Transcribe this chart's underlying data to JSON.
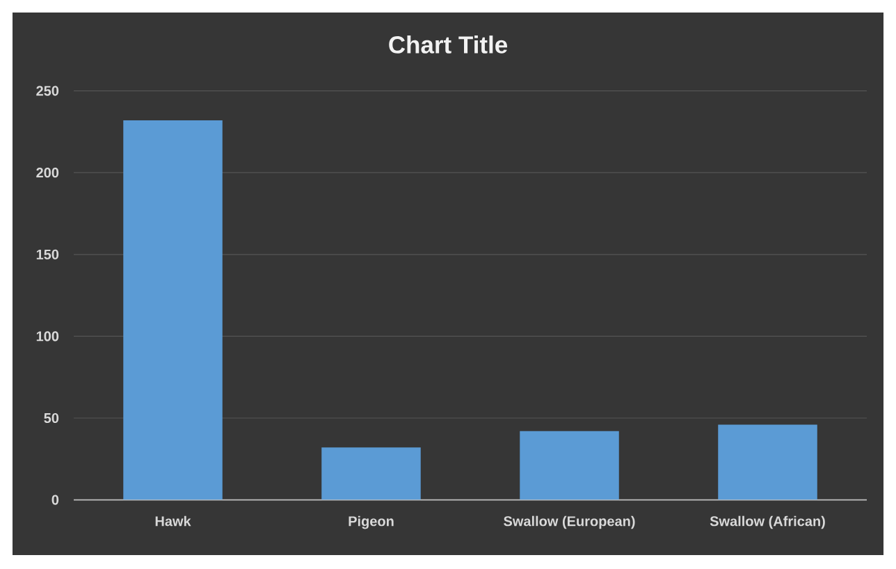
{
  "chart_data": {
    "type": "bar",
    "title": "Chart Title",
    "categories": [
      "Hawk",
      "Pigeon",
      "Swallow (European)",
      "Swallow (African)"
    ],
    "values": [
      232,
      32,
      42,
      46
    ],
    "color": "#5b9bd5",
    "ylim": [
      0,
      250
    ],
    "yticks": [
      0,
      50,
      100,
      150,
      200,
      250
    ],
    "grid": "y"
  }
}
